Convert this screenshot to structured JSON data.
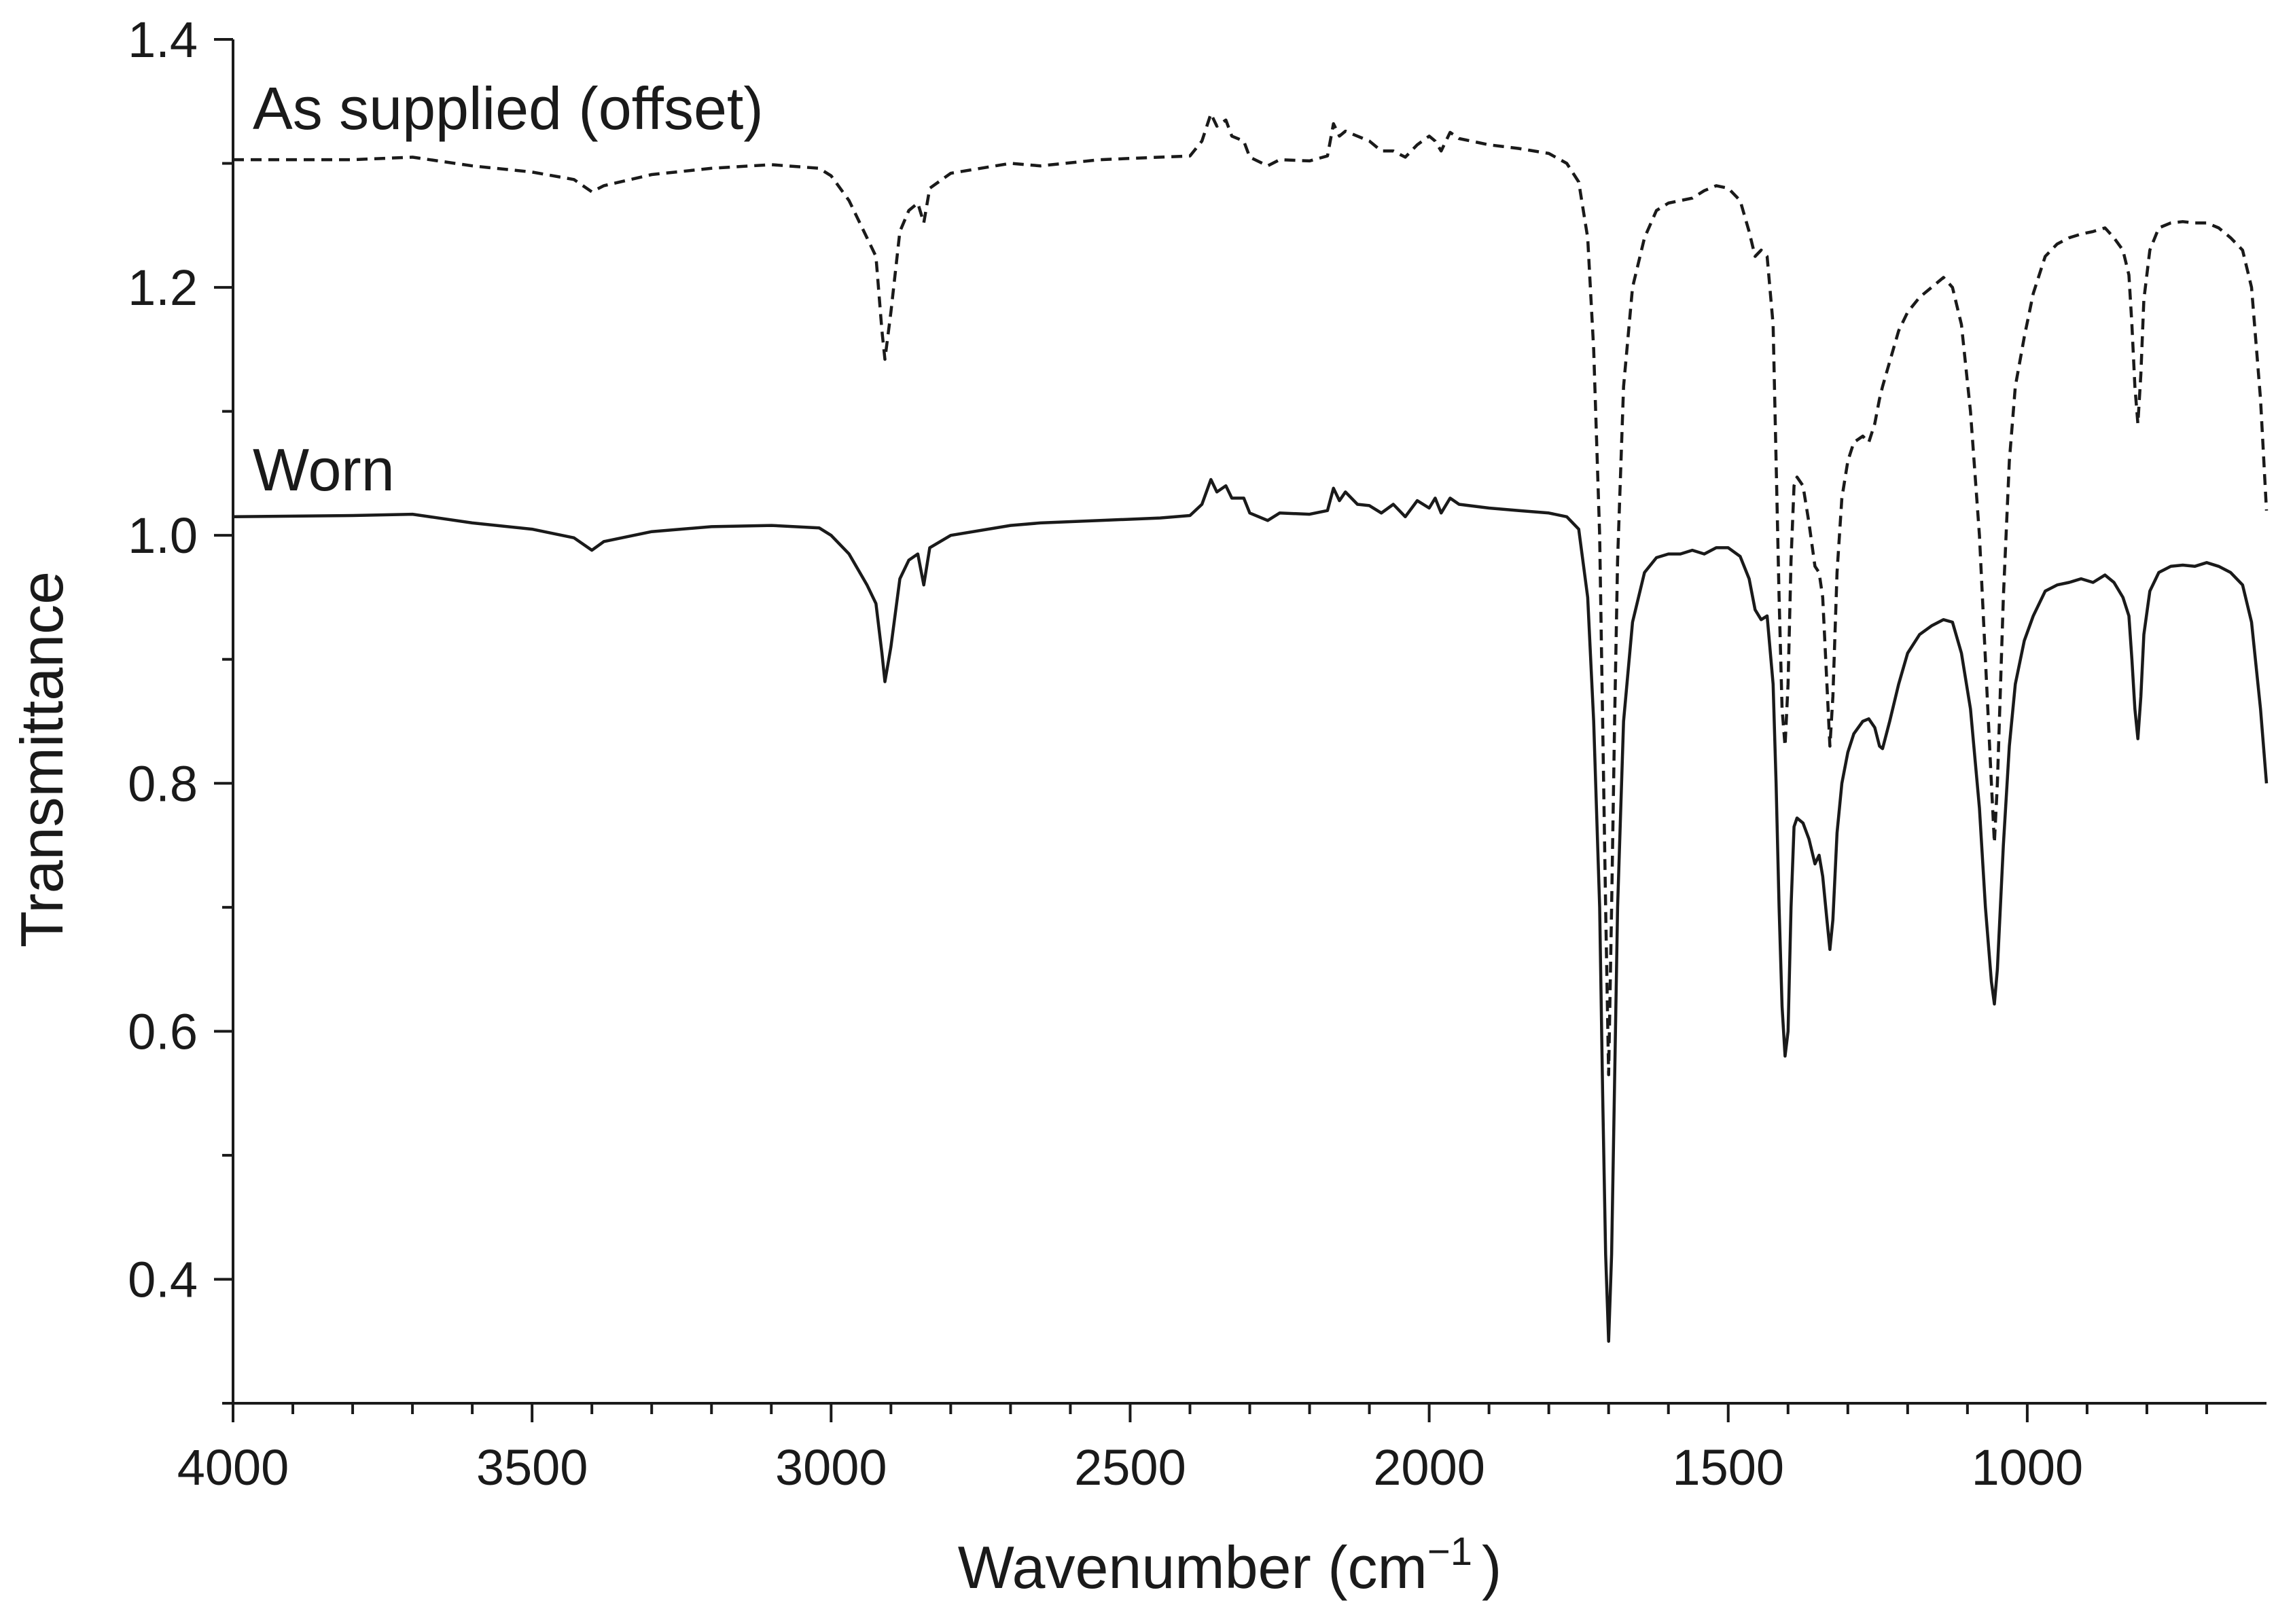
{
  "chart_data": {
    "type": "line",
    "title": "",
    "xlabel": "Wavenumber (cm",
    "xlabel_sup": "−1",
    "xlabel_close": ")",
    "ylabel": "Transmittance",
    "xlim": [
      4000,
      600
    ],
    "ylim": [
      0.3,
      1.4
    ],
    "x_ticks": [
      4000,
      3500,
      3000,
      2500,
      2000,
      1500,
      1000
    ],
    "x_tick_labels": [
      "4000",
      "3500",
      "3000",
      "2500",
      "2000",
      "1500",
      "1000"
    ],
    "y_ticks": [
      0.4,
      0.6,
      0.8,
      1.0,
      1.2,
      1.4
    ],
    "y_tick_labels": [
      "0.4",
      "0.6",
      "0.8",
      "1.0",
      "1.2",
      "1.4"
    ],
    "grid": false,
    "series": [
      {
        "name": "Worn",
        "label": "Worn",
        "style": "solid",
        "color": "#1a1a1a",
        "points": [
          [
            4000,
            1.015
          ],
          [
            3800,
            1.016
          ],
          [
            3700,
            1.017
          ],
          [
            3600,
            1.01
          ],
          [
            3500,
            1.005
          ],
          [
            3430,
            0.998
          ],
          [
            3400,
            0.988
          ],
          [
            3380,
            0.995
          ],
          [
            3300,
            1.003
          ],
          [
            3200,
            1.007
          ],
          [
            3100,
            1.008
          ],
          [
            3020,
            1.006
          ],
          [
            3000,
            1.0
          ],
          [
            2970,
            0.985
          ],
          [
            2940,
            0.96
          ],
          [
            2925,
            0.945
          ],
          [
            2915,
            0.905
          ],
          [
            2910,
            0.882
          ],
          [
            2900,
            0.91
          ],
          [
            2885,
            0.965
          ],
          [
            2870,
            0.98
          ],
          [
            2855,
            0.985
          ],
          [
            2845,
            0.96
          ],
          [
            2835,
            0.99
          ],
          [
            2800,
            1.0
          ],
          [
            2700,
            1.008
          ],
          [
            2650,
            1.01
          ],
          [
            2550,
            1.012
          ],
          [
            2450,
            1.014
          ],
          [
            2400,
            1.016
          ],
          [
            2380,
            1.025
          ],
          [
            2365,
            1.045
          ],
          [
            2355,
            1.035
          ],
          [
            2340,
            1.04
          ],
          [
            2330,
            1.03
          ],
          [
            2310,
            1.03
          ],
          [
            2300,
            1.018
          ],
          [
            2270,
            1.012
          ],
          [
            2250,
            1.018
          ],
          [
            2200,
            1.017
          ],
          [
            2170,
            1.02
          ],
          [
            2160,
            1.038
          ],
          [
            2150,
            1.028
          ],
          [
            2140,
            1.035
          ],
          [
            2120,
            1.025
          ],
          [
            2100,
            1.024
          ],
          [
            2080,
            1.018
          ],
          [
            2060,
            1.025
          ],
          [
            2040,
            1.015
          ],
          [
            2020,
            1.028
          ],
          [
            2000,
            1.022
          ],
          [
            1990,
            1.03
          ],
          [
            1980,
            1.018
          ],
          [
            1965,
            1.03
          ],
          [
            1950,
            1.025
          ],
          [
            1900,
            1.022
          ],
          [
            1850,
            1.02
          ],
          [
            1800,
            1.018
          ],
          [
            1770,
            1.015
          ],
          [
            1750,
            1.005
          ],
          [
            1735,
            0.95
          ],
          [
            1725,
            0.85
          ],
          [
            1715,
            0.7
          ],
          [
            1710,
            0.55
          ],
          [
            1705,
            0.42
          ],
          [
            1700,
            0.35
          ],
          [
            1695,
            0.42
          ],
          [
            1690,
            0.56
          ],
          [
            1685,
            0.7
          ],
          [
            1675,
            0.85
          ],
          [
            1660,
            0.93
          ],
          [
            1640,
            0.97
          ],
          [
            1620,
            0.982
          ],
          [
            1600,
            0.985
          ],
          [
            1580,
            0.985
          ],
          [
            1560,
            0.988
          ],
          [
            1540,
            0.985
          ],
          [
            1520,
            0.99
          ],
          [
            1500,
            0.99
          ],
          [
            1480,
            0.983
          ],
          [
            1465,
            0.965
          ],
          [
            1455,
            0.94
          ],
          [
            1445,
            0.932
          ],
          [
            1435,
            0.935
          ],
          [
            1425,
            0.88
          ],
          [
            1420,
            0.8
          ],
          [
            1415,
            0.7
          ],
          [
            1410,
            0.62
          ],
          [
            1405,
            0.58
          ],
          [
            1400,
            0.6
          ],
          [
            1395,
            0.7
          ],
          [
            1390,
            0.765
          ],
          [
            1385,
            0.772
          ],
          [
            1375,
            0.768
          ],
          [
            1365,
            0.755
          ],
          [
            1355,
            0.735
          ],
          [
            1348,
            0.742
          ],
          [
            1342,
            0.725
          ],
          [
            1335,
            0.69
          ],
          [
            1330,
            0.666
          ],
          [
            1325,
            0.69
          ],
          [
            1318,
            0.76
          ],
          [
            1310,
            0.8
          ],
          [
            1300,
            0.825
          ],
          [
            1290,
            0.84
          ],
          [
            1275,
            0.85
          ],
          [
            1265,
            0.852
          ],
          [
            1255,
            0.845
          ],
          [
            1247,
            0.83
          ],
          [
            1242,
            0.828
          ],
          [
            1230,
            0.85
          ],
          [
            1215,
            0.88
          ],
          [
            1200,
            0.905
          ],
          [
            1180,
            0.92
          ],
          [
            1160,
            0.927
          ],
          [
            1140,
            0.932
          ],
          [
            1125,
            0.93
          ],
          [
            1110,
            0.905
          ],
          [
            1095,
            0.86
          ],
          [
            1080,
            0.78
          ],
          [
            1070,
            0.7
          ],
          [
            1060,
            0.64
          ],
          [
            1055,
            0.622
          ],
          [
            1050,
            0.65
          ],
          [
            1040,
            0.75
          ],
          [
            1030,
            0.83
          ],
          [
            1020,
            0.88
          ],
          [
            1005,
            0.915
          ],
          [
            990,
            0.935
          ],
          [
            970,
            0.955
          ],
          [
            950,
            0.96
          ],
          [
            930,
            0.962
          ],
          [
            910,
            0.965
          ],
          [
            890,
            0.962
          ],
          [
            870,
            0.968
          ],
          [
            855,
            0.962
          ],
          [
            840,
            0.95
          ],
          [
            830,
            0.935
          ],
          [
            825,
            0.9
          ],
          [
            820,
            0.86
          ],
          [
            815,
            0.836
          ],
          [
            810,
            0.87
          ],
          [
            805,
            0.92
          ],
          [
            795,
            0.955
          ],
          [
            780,
            0.97
          ],
          [
            760,
            0.975
          ],
          [
            740,
            0.976
          ],
          [
            720,
            0.975
          ],
          [
            700,
            0.978
          ],
          [
            680,
            0.975
          ],
          [
            660,
            0.97
          ],
          [
            640,
            0.96
          ],
          [
            625,
            0.93
          ],
          [
            610,
            0.86
          ],
          [
            600,
            0.8
          ]
        ]
      },
      {
        "name": "As supplied (offset)",
        "label": "As supplied (offset)",
        "style": "dashed",
        "color": "#1a1a1a",
        "points": [
          [
            4000,
            1.303
          ],
          [
            3800,
            1.303
          ],
          [
            3700,
            1.305
          ],
          [
            3600,
            1.298
          ],
          [
            3500,
            1.293
          ],
          [
            3430,
            1.287
          ],
          [
            3400,
            1.277
          ],
          [
            3380,
            1.282
          ],
          [
            3300,
            1.291
          ],
          [
            3200,
            1.296
          ],
          [
            3100,
            1.299
          ],
          [
            3020,
            1.296
          ],
          [
            3000,
            1.29
          ],
          [
            2970,
            1.27
          ],
          [
            2940,
            1.24
          ],
          [
            2925,
            1.225
          ],
          [
            2915,
            1.165
          ],
          [
            2910,
            1.142
          ],
          [
            2900,
            1.18
          ],
          [
            2885,
            1.245
          ],
          [
            2870,
            1.262
          ],
          [
            2855,
            1.268
          ],
          [
            2845,
            1.252
          ],
          [
            2835,
            1.28
          ],
          [
            2800,
            1.292
          ],
          [
            2700,
            1.3
          ],
          [
            2650,
            1.298
          ],
          [
            2550,
            1.303
          ],
          [
            2450,
            1.305
          ],
          [
            2400,
            1.306
          ],
          [
            2380,
            1.318
          ],
          [
            2365,
            1.34
          ],
          [
            2355,
            1.33
          ],
          [
            2340,
            1.335
          ],
          [
            2330,
            1.322
          ],
          [
            2310,
            1.318
          ],
          [
            2300,
            1.305
          ],
          [
            2270,
            1.298
          ],
          [
            2250,
            1.303
          ],
          [
            2200,
            1.302
          ],
          [
            2170,
            1.306
          ],
          [
            2160,
            1.332
          ],
          [
            2150,
            1.322
          ],
          [
            2140,
            1.326
          ],
          [
            2120,
            1.322
          ],
          [
            2100,
            1.318
          ],
          [
            2080,
            1.31
          ],
          [
            2060,
            1.31
          ],
          [
            2040,
            1.305
          ],
          [
            2020,
            1.315
          ],
          [
            2000,
            1.322
          ],
          [
            1990,
            1.318
          ],
          [
            1980,
            1.31
          ],
          [
            1965,
            1.325
          ],
          [
            1950,
            1.32
          ],
          [
            1900,
            1.315
          ],
          [
            1850,
            1.312
          ],
          [
            1800,
            1.308
          ],
          [
            1770,
            1.3
          ],
          [
            1750,
            1.285
          ],
          [
            1735,
            1.24
          ],
          [
            1725,
            1.15
          ],
          [
            1715,
            1.0
          ],
          [
            1710,
            0.85
          ],
          [
            1705,
            0.7
          ],
          [
            1700,
            0.565
          ],
          [
            1695,
            0.7
          ],
          [
            1690,
            0.85
          ],
          [
            1685,
            0.98
          ],
          [
            1675,
            1.12
          ],
          [
            1660,
            1.2
          ],
          [
            1640,
            1.24
          ],
          [
            1620,
            1.262
          ],
          [
            1600,
            1.268
          ],
          [
            1580,
            1.27
          ],
          [
            1560,
            1.272
          ],
          [
            1540,
            1.278
          ],
          [
            1520,
            1.282
          ],
          [
            1500,
            1.28
          ],
          [
            1480,
            1.27
          ],
          [
            1465,
            1.245
          ],
          [
            1455,
            1.225
          ],
          [
            1445,
            1.23
          ],
          [
            1435,
            1.225
          ],
          [
            1425,
            1.17
          ],
          [
            1420,
            1.06
          ],
          [
            1415,
            0.95
          ],
          [
            1410,
            0.86
          ],
          [
            1405,
            0.83
          ],
          [
            1400,
            0.88
          ],
          [
            1395,
            0.98
          ],
          [
            1390,
            1.04
          ],
          [
            1385,
            1.047
          ],
          [
            1375,
            1.04
          ],
          [
            1365,
            1.01
          ],
          [
            1355,
            0.975
          ],
          [
            1348,
            0.97
          ],
          [
            1342,
            0.95
          ],
          [
            1335,
            0.88
          ],
          [
            1330,
            0.83
          ],
          [
            1325,
            0.87
          ],
          [
            1318,
            0.97
          ],
          [
            1310,
            1.03
          ],
          [
            1300,
            1.06
          ],
          [
            1290,
            1.075
          ],
          [
            1275,
            1.08
          ],
          [
            1265,
            1.075
          ],
          [
            1255,
            1.09
          ],
          [
            1247,
            1.11
          ],
          [
            1242,
            1.12
          ],
          [
            1230,
            1.14
          ],
          [
            1215,
            1.165
          ],
          [
            1200,
            1.18
          ],
          [
            1180,
            1.192
          ],
          [
            1160,
            1.2
          ],
          [
            1140,
            1.208
          ],
          [
            1125,
            1.2
          ],
          [
            1110,
            1.17
          ],
          [
            1095,
            1.1
          ],
          [
            1080,
            1.0
          ],
          [
            1070,
            0.9
          ],
          [
            1060,
            0.8
          ],
          [
            1055,
            0.752
          ],
          [
            1050,
            0.8
          ],
          [
            1040,
            0.95
          ],
          [
            1030,
            1.06
          ],
          [
            1020,
            1.12
          ],
          [
            1005,
            1.16
          ],
          [
            990,
            1.195
          ],
          [
            970,
            1.225
          ],
          [
            950,
            1.235
          ],
          [
            930,
            1.24
          ],
          [
            910,
            1.243
          ],
          [
            890,
            1.245
          ],
          [
            870,
            1.248
          ],
          [
            855,
            1.24
          ],
          [
            840,
            1.23
          ],
          [
            830,
            1.21
          ],
          [
            825,
            1.17
          ],
          [
            820,
            1.12
          ],
          [
            815,
            1.09
          ],
          [
            810,
            1.13
          ],
          [
            805,
            1.19
          ],
          [
            795,
            1.23
          ],
          [
            780,
            1.248
          ],
          [
            760,
            1.252
          ],
          [
            740,
            1.253
          ],
          [
            720,
            1.252
          ],
          [
            700,
            1.252
          ],
          [
            680,
            1.248
          ],
          [
            660,
            1.24
          ],
          [
            640,
            1.23
          ],
          [
            625,
            1.2
          ],
          [
            610,
            1.11
          ],
          [
            600,
            1.02
          ]
        ]
      }
    ]
  }
}
